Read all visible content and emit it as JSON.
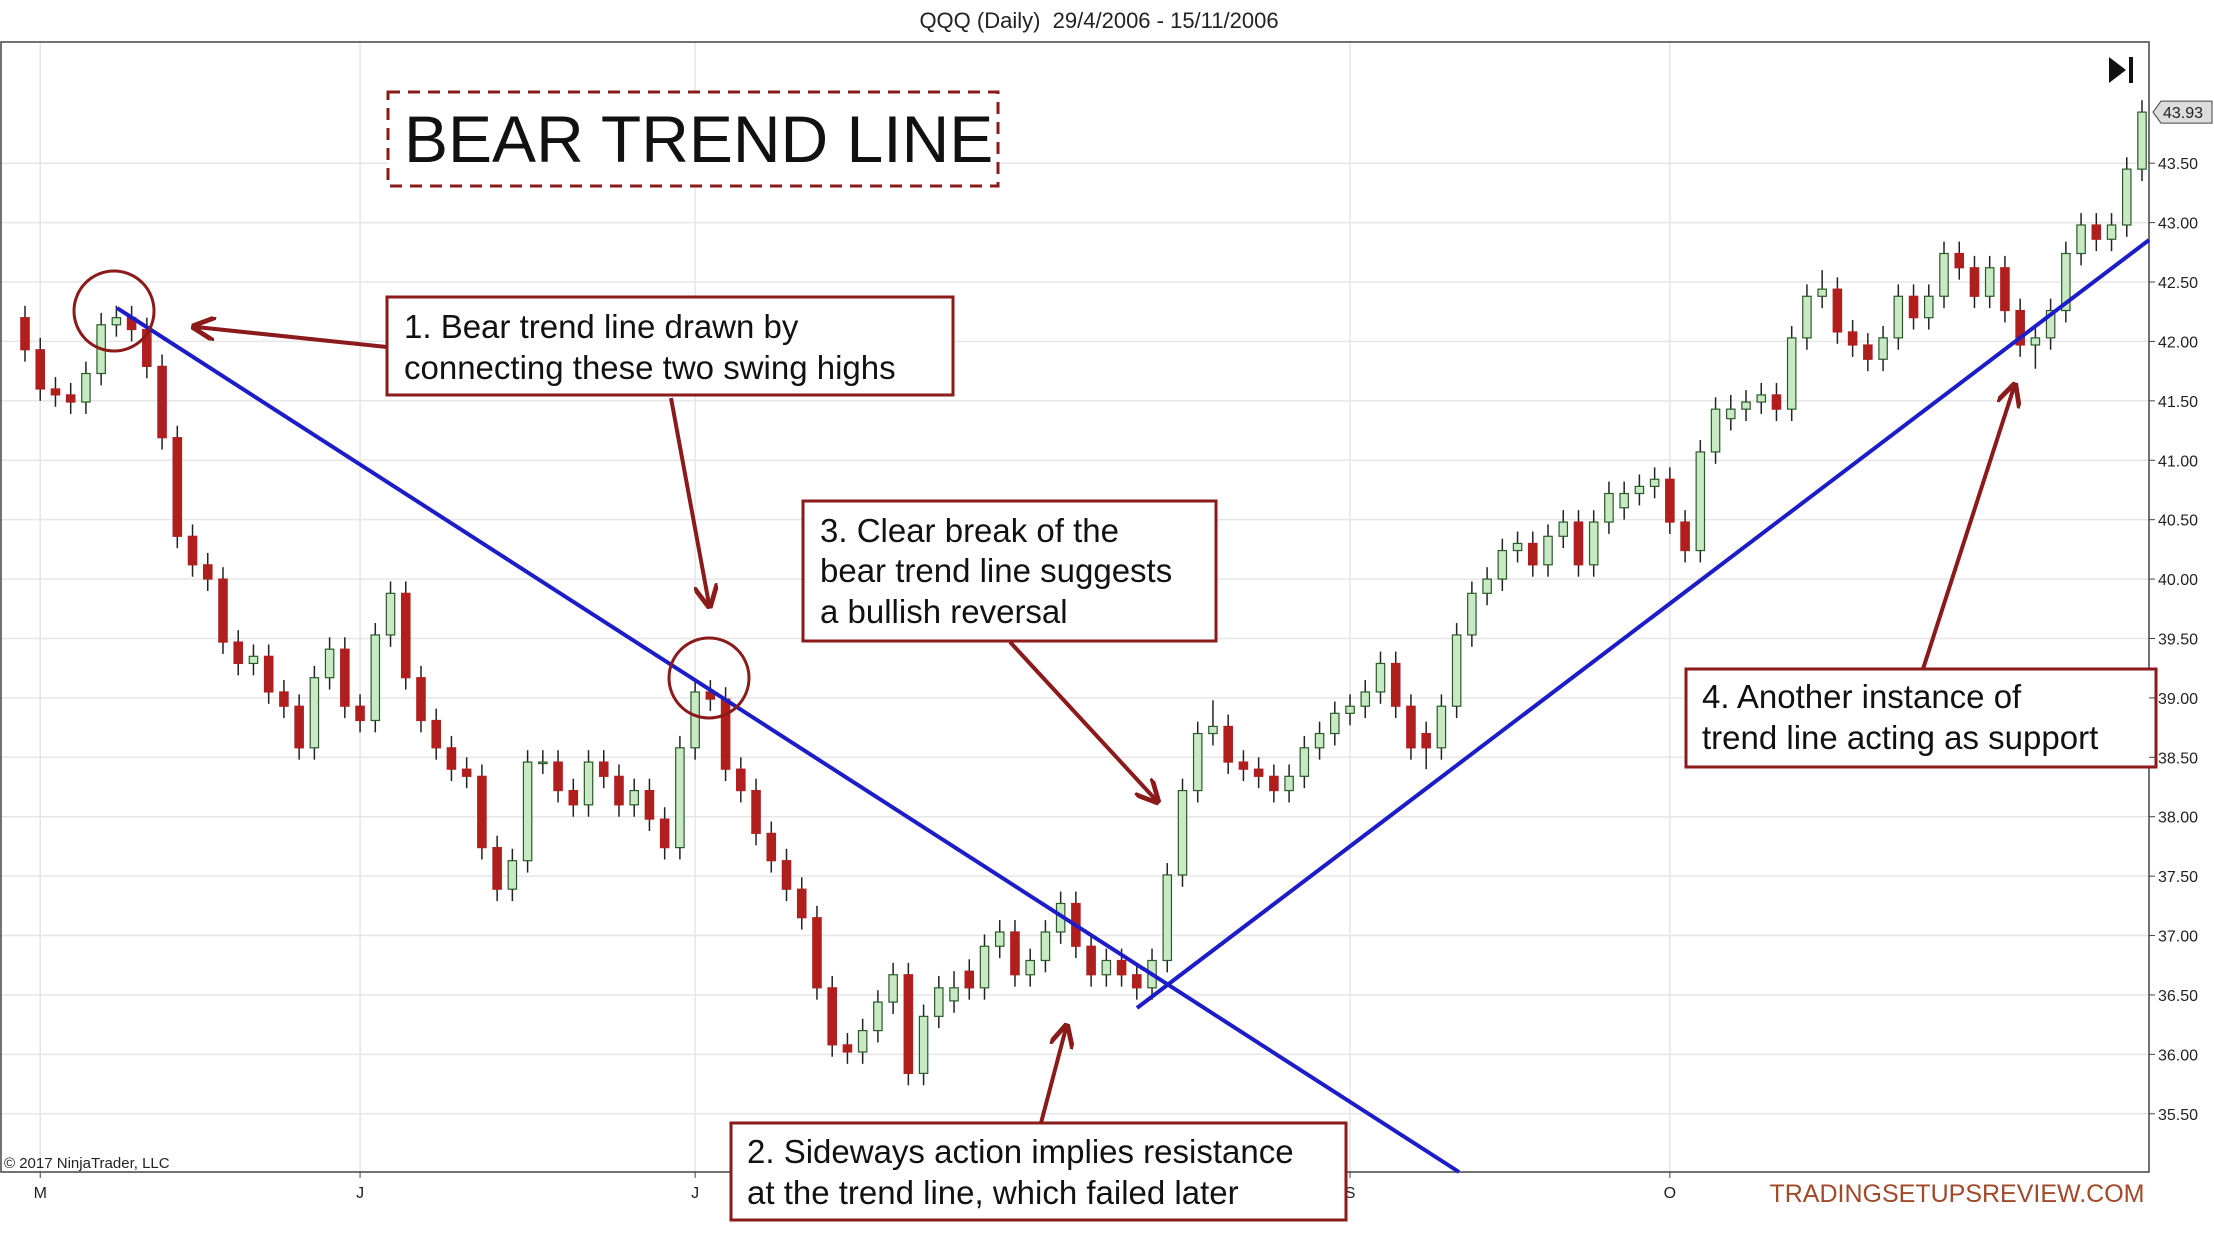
{
  "chart_data": {
    "type": "candlestick",
    "title": "QQQ (Daily)  29/4/2006 - 15/11/2006",
    "heading": "BEAR TREND LINE",
    "copyright": "© 2017 NinjaTrader, LLC",
    "watermark": "TRADINGSETUPSREVIEW.COM",
    "up_color": "#c9e8c4",
    "down_color": "#b01e1e",
    "grid": true,
    "annotations": [
      {
        "lines": [
          "1. Bear trend line drawn by",
          "connecting these two swing highs"
        ]
      },
      {
        "lines": [
          "2. Sideways action implies resistance",
          "at the trend line, which failed later"
        ]
      },
      {
        "lines": [
          "3. Clear break of the",
          "bear trend line suggests",
          "a bullish reversal"
        ]
      },
      {
        "lines": [
          "4. Another instance of",
          "trend line acting as support"
        ]
      }
    ],
    "ylim": [
      35.01,
      44.52
    ],
    "yticks": [
      {
        "value": 35.5,
        "label": "35.50"
      },
      {
        "value": 36,
        "label": "36.00"
      },
      {
        "value": 36.5,
        "label": "36.50"
      },
      {
        "value": 37,
        "label": "37.00"
      },
      {
        "value": 37.5,
        "label": "37.50"
      },
      {
        "value": 38,
        "label": "38.00"
      },
      {
        "value": 38.5,
        "label": "38.50"
      },
      {
        "value": 39,
        "label": "39.00"
      },
      {
        "value": 39.5,
        "label": "39.50"
      },
      {
        "value": 40,
        "label": "40.00"
      },
      {
        "value": 40.5,
        "label": "40.50"
      },
      {
        "value": 41,
        "label": "41.00"
      },
      {
        "value": 41.5,
        "label": "41.50"
      },
      {
        "value": 42,
        "label": "42.00"
      },
      {
        "value": 42.5,
        "label": "42.50"
      },
      {
        "value": 43,
        "label": "43.00"
      },
      {
        "value": 43.5,
        "label": "43.50"
      }
    ],
    "categories": [
      null,
      "M",
      null,
      null,
      null,
      null,
      null,
      null,
      null,
      null,
      null,
      null,
      null,
      null,
      null,
      null,
      null,
      null,
      null,
      null,
      null,
      null,
      "J",
      null,
      null,
      null,
      null,
      null,
      null,
      null,
      null,
      null,
      null,
      null,
      null,
      null,
      null,
      null,
      null,
      null,
      null,
      null,
      null,
      null,
      "J",
      null,
      null,
      null,
      null,
      null,
      null,
      null,
      null,
      null,
      null,
      null,
      null,
      null,
      null,
      null,
      null,
      null,
      null,
      null,
      null,
      null,
      null,
      null,
      null,
      null,
      null,
      null,
      null,
      null,
      null,
      null,
      null,
      null,
      null,
      null,
      null,
      null,
      null,
      null,
      null,
      null,
      null,
      "S",
      null,
      null,
      null,
      null,
      null,
      null,
      null,
      null,
      null,
      null,
      null,
      null,
      null,
      null,
      null,
      null,
      null,
      null,
      null,
      null,
      "O",
      null,
      null,
      null,
      null,
      null,
      null,
      null,
      null,
      null,
      null,
      null,
      null,
      null,
      null,
      null,
      null,
      null,
      null,
      null,
      null,
      null,
      null,
      null,
      null,
      null,
      null,
      null,
      null,
      null,
      null,
      null
    ],
    "candles": [
      [
        42.2,
        42.3,
        41.83,
        41.93
      ],
      [
        41.93,
        42.03,
        41.5,
        41.6
      ],
      [
        41.6,
        41.7,
        41.45,
        41.55
      ],
      [
        41.55,
        41.65,
        41.39,
        41.49
      ],
      [
        41.49,
        41.83,
        41.39,
        41.73
      ],
      [
        41.73,
        42.24,
        41.63,
        42.14
      ],
      [
        42.14,
        42.3,
        42.04,
        42.2
      ],
      [
        42.2,
        42.3,
        42.0,
        42.1
      ],
      [
        42.1,
        42.2,
        41.69,
        41.79
      ],
      [
        41.79,
        41.89,
        41.09,
        41.19
      ],
      [
        41.19,
        41.29,
        40.26,
        40.36
      ],
      [
        40.36,
        40.46,
        40.02,
        40.12
      ],
      [
        40.12,
        40.22,
        39.9,
        40.0
      ],
      [
        40.0,
        40.1,
        39.37,
        39.47
      ],
      [
        39.47,
        39.57,
        39.19,
        39.29
      ],
      [
        39.29,
        39.45,
        39.19,
        39.35
      ],
      [
        39.35,
        39.45,
        38.95,
        39.05
      ],
      [
        39.05,
        39.15,
        38.83,
        38.93
      ],
      [
        38.93,
        39.03,
        38.48,
        38.58
      ],
      [
        38.58,
        39.27,
        38.48,
        39.17
      ],
      [
        39.17,
        39.51,
        39.07,
        39.41
      ],
      [
        39.41,
        39.51,
        38.83,
        38.93
      ],
      [
        38.93,
        39.03,
        38.71,
        38.81
      ],
      [
        38.81,
        39.63,
        38.71,
        39.53
      ],
      [
        39.53,
        39.98,
        39.43,
        39.88
      ],
      [
        39.88,
        39.98,
        39.07,
        39.17
      ],
      [
        39.17,
        39.27,
        38.71,
        38.81
      ],
      [
        38.81,
        38.91,
        38.48,
        38.58
      ],
      [
        38.58,
        38.68,
        38.3,
        38.4
      ],
      [
        38.4,
        38.5,
        38.24,
        38.34
      ],
      [
        38.34,
        38.44,
        37.64,
        37.74
      ],
      [
        37.74,
        37.84,
        37.29,
        37.39
      ],
      [
        37.39,
        37.73,
        37.29,
        37.63
      ],
      [
        37.63,
        38.56,
        37.53,
        38.46
      ],
      [
        38.46,
        38.56,
        38.36,
        38.46
      ],
      [
        38.46,
        38.56,
        38.12,
        38.22
      ],
      [
        38.22,
        38.32,
        38.0,
        38.1
      ],
      [
        38.1,
        38.56,
        38.0,
        38.46
      ],
      [
        38.46,
        38.56,
        38.24,
        38.34
      ],
      [
        38.34,
        38.44,
        38.0,
        38.1
      ],
      [
        38.1,
        38.32,
        38.0,
        38.22
      ],
      [
        38.22,
        38.32,
        37.88,
        37.98
      ],
      [
        37.98,
        38.08,
        37.64,
        37.74
      ],
      [
        37.74,
        38.68,
        37.64,
        38.58
      ],
      [
        38.58,
        39.15,
        38.48,
        39.05
      ],
      [
        39.05,
        39.15,
        38.89,
        38.99
      ],
      [
        38.99,
        39.09,
        38.3,
        38.4
      ],
      [
        38.4,
        38.5,
        38.12,
        38.22
      ],
      [
        38.22,
        38.32,
        37.76,
        37.86
      ],
      [
        37.86,
        37.96,
        37.53,
        37.63
      ],
      [
        37.63,
        37.73,
        37.29,
        37.39
      ],
      [
        37.39,
        37.49,
        37.05,
        37.15
      ],
      [
        37.15,
        37.25,
        36.46,
        36.56
      ],
      [
        36.56,
        36.66,
        35.98,
        36.08
      ],
      [
        36.08,
        36.18,
        35.92,
        36.02
      ],
      [
        36.02,
        36.3,
        35.92,
        36.2
      ],
      [
        36.2,
        36.54,
        36.1,
        36.44
      ],
      [
        36.44,
        36.77,
        36.34,
        36.67
      ],
      [
        36.67,
        36.77,
        35.74,
        35.84
      ],
      [
        35.84,
        36.42,
        35.74,
        36.32
      ],
      [
        36.32,
        36.66,
        36.22,
        36.56
      ],
      [
        36.45,
        36.7,
        36.35,
        36.56
      ],
      [
        36.7,
        36.8,
        36.46,
        36.56
      ],
      [
        36.56,
        37.01,
        36.46,
        36.91
      ],
      [
        36.91,
        37.13,
        36.81,
        37.03
      ],
      [
        37.03,
        37.13,
        36.57,
        36.67
      ],
      [
        36.67,
        36.89,
        36.57,
        36.79
      ],
      [
        36.79,
        37.13,
        36.69,
        37.03
      ],
      [
        37.03,
        37.37,
        36.93,
        37.27
      ],
      [
        37.27,
        37.37,
        36.81,
        36.91
      ],
      [
        36.91,
        37.01,
        36.57,
        36.67
      ],
      [
        36.67,
        36.89,
        36.57,
        36.79
      ],
      [
        36.79,
        36.89,
        36.57,
        36.67
      ],
      [
        36.67,
        36.77,
        36.46,
        36.56
      ],
      [
        36.56,
        36.89,
        36.46,
        36.79
      ],
      [
        36.79,
        37.61,
        36.69,
        37.51
      ],
      [
        37.51,
        38.32,
        37.41,
        38.22
      ],
      [
        38.22,
        38.8,
        38.12,
        38.7
      ],
      [
        38.7,
        38.98,
        38.6,
        38.76
      ],
      [
        38.76,
        38.86,
        38.36,
        38.46
      ],
      [
        38.46,
        38.56,
        38.3,
        38.4
      ],
      [
        38.4,
        38.5,
        38.24,
        38.34
      ],
      [
        38.34,
        38.44,
        38.12,
        38.22
      ],
      [
        38.22,
        38.44,
        38.12,
        38.34
      ],
      [
        38.34,
        38.68,
        38.24,
        38.58
      ],
      [
        38.58,
        38.8,
        38.48,
        38.7
      ],
      [
        38.7,
        38.97,
        38.6,
        38.87
      ],
      [
        38.87,
        39.03,
        38.77,
        38.93
      ],
      [
        38.93,
        39.15,
        38.83,
        39.05
      ],
      [
        39.05,
        39.39,
        38.95,
        39.29
      ],
      [
        39.29,
        39.39,
        38.83,
        38.93
      ],
      [
        38.93,
        39.03,
        38.48,
        38.58
      ],
      [
        38.7,
        38.8,
        38.4,
        38.58
      ],
      [
        38.58,
        39.03,
        38.48,
        38.93
      ],
      [
        38.93,
        39.63,
        38.83,
        39.53
      ],
      [
        39.53,
        39.98,
        39.43,
        39.88
      ],
      [
        39.88,
        40.1,
        39.78,
        40.0
      ],
      [
        40.0,
        40.34,
        39.9,
        40.24
      ],
      [
        40.24,
        40.4,
        40.14,
        40.3
      ],
      [
        40.3,
        40.4,
        40.02,
        40.12
      ],
      [
        40.12,
        40.46,
        40.02,
        40.36
      ],
      [
        40.36,
        40.58,
        40.26,
        40.48
      ],
      [
        40.48,
        40.58,
        40.02,
        40.12
      ],
      [
        40.12,
        40.58,
        40.02,
        40.48
      ],
      [
        40.48,
        40.82,
        40.38,
        40.72
      ],
      [
        40.6,
        40.82,
        40.5,
        40.72
      ],
      [
        40.72,
        40.88,
        40.62,
        40.78
      ],
      [
        40.78,
        40.94,
        40.68,
        40.84
      ],
      [
        40.84,
        40.94,
        40.38,
        40.48
      ],
      [
        40.48,
        40.58,
        40.14,
        40.24
      ],
      [
        40.24,
        41.17,
        40.14,
        41.07
      ],
      [
        41.07,
        41.53,
        40.97,
        41.43
      ],
      [
        41.35,
        41.55,
        41.25,
        41.43
      ],
      [
        41.43,
        41.59,
        41.33,
        41.49
      ],
      [
        41.49,
        41.65,
        41.39,
        41.55
      ],
      [
        41.55,
        41.65,
        41.33,
        41.43
      ],
      [
        41.43,
        42.13,
        41.33,
        42.03
      ],
      [
        42.03,
        42.48,
        41.93,
        42.38
      ],
      [
        42.38,
        42.6,
        42.28,
        42.44
      ],
      [
        42.44,
        42.54,
        41.98,
        42.08
      ],
      [
        42.08,
        42.18,
        41.87,
        41.97
      ],
      [
        41.97,
        42.07,
        41.75,
        41.85
      ],
      [
        41.85,
        42.13,
        41.75,
        42.03
      ],
      [
        42.03,
        42.48,
        41.93,
        42.38
      ],
      [
        42.38,
        42.48,
        42.1,
        42.2
      ],
      [
        42.2,
        42.48,
        42.1,
        42.38
      ],
      [
        42.38,
        42.84,
        42.28,
        42.74
      ],
      [
        42.74,
        42.84,
        42.52,
        42.62
      ],
      [
        42.62,
        42.72,
        42.28,
        42.38
      ],
      [
        42.38,
        42.72,
        42.28,
        42.62
      ],
      [
        42.62,
        42.72,
        42.16,
        42.26
      ],
      [
        42.26,
        42.36,
        41.87,
        41.97
      ],
      [
        41.97,
        42.13,
        41.77,
        42.03
      ],
      [
        42.03,
        42.36,
        41.93,
        42.26
      ],
      [
        42.26,
        42.84,
        42.16,
        42.74
      ],
      [
        42.74,
        43.08,
        42.64,
        42.98
      ],
      [
        42.98,
        43.08,
        42.76,
        42.86
      ],
      [
        42.86,
        43.08,
        42.76,
        42.98
      ],
      [
        42.98,
        43.55,
        42.88,
        43.45
      ],
      [
        43.45,
        44.03,
        43.35,
        43.93
      ]
    ]
  }
}
